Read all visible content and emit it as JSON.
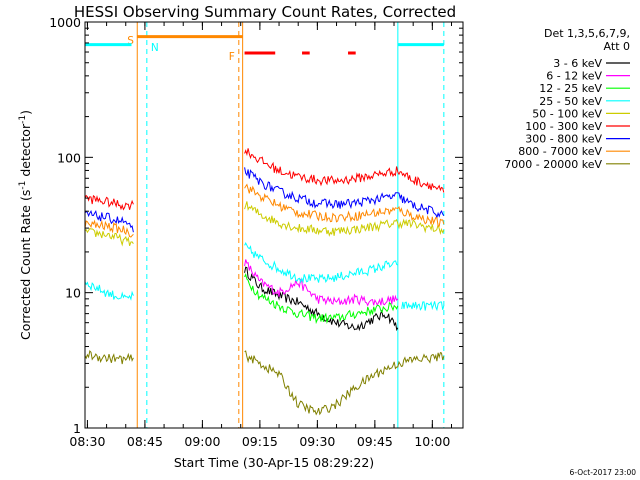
{
  "chart_data": {
    "type": "line",
    "title": "HESSI Observing Summary Count Rates, Corrected",
    "xlabel": "Start Time (30-Apr-15 08:29:22)",
    "ylabel_main": "Corrected Count Rate (s",
    "ylabel_sup1": "-1",
    "ylabel_mid": " detector",
    "ylabel_sup2": "-1",
    "ylabel_end": ")",
    "y_scale": "log",
    "xlim": [
      "08:29:22",
      "10:08:00"
    ],
    "ylim": [
      1,
      1000
    ],
    "x_ticks": [
      "08:30",
      "08:45",
      "09:00",
      "09:15",
      "09:30",
      "09:45",
      "10:00"
    ],
    "y_ticks": [
      "1",
      "10",
      "100",
      "1000"
    ],
    "grid": false,
    "legend_position": "right",
    "legend_header": [
      "Det 1,3,5,6,7,9,",
      "Att 0"
    ],
    "footer": "6-Oct-2017 23:00",
    "series": [
      {
        "name": "3 - 6 keV",
        "color": "#000000",
        "segments": [
          {
            "x": [
              "09:11",
              "09:15",
              "09:20",
              "09:25",
              "09:30",
              "09:35",
              "09:40",
              "09:45",
              "09:48",
              "09:51"
            ],
            "y": [
              15,
              11,
              9.5,
              8.5,
              7,
              6,
              5.5,
              6.5,
              7,
              5.5
            ]
          }
        ]
      },
      {
        "name": "6 - 12 keV",
        "color": "#ff00ff",
        "segments": [
          {
            "x": [
              "09:11",
              "09:15",
              "09:20",
              "09:25",
              "09:30",
              "09:35",
              "09:40",
              "09:45",
              "09:51"
            ],
            "y": [
              17,
              12,
              10,
              12,
              9,
              8.5,
              9,
              8.5,
              9
            ]
          }
        ]
      },
      {
        "name": "12 - 25 keV",
        "color": "#00ff00",
        "segments": [
          {
            "x": [
              "09:11",
              "09:15",
              "09:20",
              "09:25",
              "09:30",
              "09:35",
              "09:40",
              "09:45",
              "09:51"
            ],
            "y": [
              13,
              9.5,
              8,
              7,
              6.5,
              6.5,
              7,
              7.5,
              8
            ]
          }
        ]
      },
      {
        "name": "25 - 50 keV",
        "color": "#00ffff",
        "segments": [
          {
            "x": [
              "08:29:22",
              "08:35",
              "08:40",
              "08:42"
            ],
            "y": [
              12,
              10,
              9,
              9.5
            ]
          },
          {
            "x": [
              "09:11",
              "09:15",
              "09:20",
              "09:25",
              "09:30",
              "09:35",
              "09:40",
              "09:45",
              "09:48",
              "09:51"
            ],
            "y": [
              22,
              18,
              15,
              13,
              12.5,
              13,
              14,
              15,
              16,
              16
            ]
          },
          {
            "x": [
              "09:52",
              "09:55",
              "10:00",
              "10:03"
            ],
            "y": [
              8,
              8,
              8,
              8
            ]
          }
        ]
      },
      {
        "name": "50 - 100 keV",
        "color": "#cccc00",
        "segments": [
          {
            "x": [
              "08:29:22",
              "08:35",
              "08:40",
              "08:42"
            ],
            "y": [
              28,
              27,
              24,
              23
            ]
          },
          {
            "x": [
              "09:11",
              "09:15",
              "09:20",
              "09:25",
              "09:30",
              "09:35",
              "09:40",
              "09:45",
              "09:51",
              "09:55",
              "10:00",
              "10:03"
            ],
            "y": [
              45,
              38,
              33,
              30,
              29,
              28.5,
              29.5,
              31,
              33,
              32,
              30,
              29
            ]
          }
        ]
      },
      {
        "name": "100 - 300 keV",
        "color": "#ff0000",
        "segments": [
          {
            "x": [
              "08:29:22",
              "08:35",
              "08:40",
              "08:42"
            ],
            "y": [
              50,
              47,
              44,
              45
            ]
          },
          {
            "x": [
              "09:11",
              "09:15",
              "09:20",
              "09:25",
              "09:30",
              "09:35",
              "09:40",
              "09:45",
              "09:51",
              "09:55",
              "10:00",
              "10:03"
            ],
            "y": [
              115,
              95,
              80,
              72,
              68,
              67,
              70,
              74,
              80,
              68,
              62,
              55
            ]
          }
        ]
      },
      {
        "name": "300 - 800 keV",
        "color": "#0000ff",
        "segments": [
          {
            "x": [
              "08:29:22",
              "08:35",
              "08:40",
              "08:42"
            ],
            "y": [
              38,
              36,
              33,
              28
            ]
          },
          {
            "x": [
              "09:11",
              "09:15",
              "09:20",
              "09:25",
              "09:30",
              "09:35",
              "09:40",
              "09:45",
              "09:51",
              "09:55",
              "10:00",
              "10:03"
            ],
            "y": [
              80,
              66,
              56,
              50,
              46,
              45,
              46,
              49,
              52,
              44,
              40,
              37
            ]
          }
        ]
      },
      {
        "name": "800 - 7000 keV",
        "color": "#ff8800",
        "segments": [
          {
            "x": [
              "08:29:22",
              "08:35",
              "08:40",
              "08:42"
            ],
            "y": [
              32,
              31,
              29,
              27
            ]
          },
          {
            "x": [
              "09:11",
              "09:15",
              "09:20",
              "09:25",
              "09:30",
              "09:35",
              "09:40",
              "09:45",
              "09:51",
              "09:55",
              "10:00",
              "10:03"
            ],
            "y": [
              62,
              52,
              44,
              39,
              37,
              36,
              37,
              39,
              41,
              37,
              34,
              32
            ]
          }
        ]
      },
      {
        "name": "7000 - 20000 keV",
        "color": "#808000",
        "segments": [
          {
            "x": [
              "08:29:22",
              "08:35",
              "08:40",
              "08:42"
            ],
            "y": [
              3.5,
              3.3,
              3.2,
              3.3
            ]
          },
          {
            "x": [
              "09:11",
              "09:15",
              "09:20",
              "09:25",
              "09:30",
              "09:35",
              "09:40",
              "09:45",
              "09:51",
              "09:55",
              "10:00",
              "10:03"
            ],
            "y": [
              3.5,
              3,
              2.5,
              1.5,
              1.3,
              1.5,
              2,
              2.5,
              3,
              3.2,
              3.3,
              3.4
            ]
          }
        ]
      }
    ],
    "annotations": {
      "lines": [
        {
          "label": "S",
          "x": "08:43",
          "color": "#ff8800",
          "style": "solid"
        },
        {
          "label": "N",
          "x": "08:45:30",
          "color": "#00ffff",
          "style": "dashed"
        },
        {
          "label": "F",
          "x": "09:09:30",
          "color": "#ff8800",
          "style": "dashed"
        },
        {
          "x": "09:10:30",
          "color": "#ff8800",
          "style": "solid"
        },
        {
          "x": "09:51",
          "color": "#00ffff",
          "style": "solid"
        },
        {
          "x": "10:03",
          "color": "#00ffff",
          "style": "dashed"
        }
      ],
      "bars": [
        {
          "x": [
            "08:29:22",
            "08:41:30"
          ],
          "y": 680,
          "color": "#00ffff"
        },
        {
          "x": [
            "08:43",
            "09:10:30"
          ],
          "y": 780,
          "color": "#ff8800"
        },
        {
          "x": [
            "09:51",
            "10:03"
          ],
          "y": 680,
          "color": "#00ffff"
        },
        {
          "x": [
            "09:11",
            "09:19"
          ],
          "y": 590,
          "color": "#ff0000"
        },
        {
          "x": [
            "09:26",
            "09:28"
          ],
          "y": 590,
          "color": "#ff0000"
        },
        {
          "x": [
            "09:38",
            "09:40"
          ],
          "y": 590,
          "color": "#ff0000"
        }
      ]
    }
  }
}
